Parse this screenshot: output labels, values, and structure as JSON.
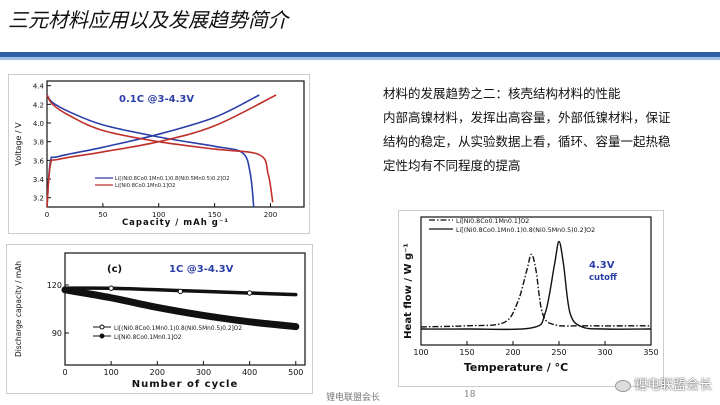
{
  "page": {
    "title": "三元材料应用以及发展趋势简介",
    "description_lines": [
      "材料的发展趋势之二：核壳结构材料的性能",
      "内部高镍材料，发挥出高容量，外部低镍材料，保证",
      "结构的稳定，从实验数据上看，循环、容量一起热稳",
      "定性均有不同程度的提高"
    ],
    "footer_center": "锂电联盟会长",
    "page_number": "18",
    "watermark": "锂电联盟会长"
  },
  "colors": {
    "accent": "#2e5fa8",
    "accent_light": "#9fbde0",
    "blue_curve": "#2c3fa8",
    "red_curve": "#c0302a"
  },
  "chart_data": [
    {
      "type": "line",
      "annotation": "0.1C @3-4.3V",
      "xlabel": "Capacity / mAh g⁻¹",
      "ylabel": "Voltage / V",
      "xlim": [
        0,
        230
      ],
      "ylim": [
        3.1,
        4.45
      ],
      "xticks": [
        0,
        50,
        100,
        150,
        200
      ],
      "yticks": [
        3.2,
        3.4,
        3.6,
        3.8,
        4.0,
        4.2,
        4.4
      ],
      "legend": [
        "Li[(Ni0.8Co0.1Mn0.1)0.8(Ni0.5Mn0.5)0.2]O2",
        "Li[Ni0.8Co0.1Mn0.1]O2"
      ],
      "series": [
        {
          "name": "Li[(Ni0.8Co0.1Mn0.1)0.8(Ni0.5Mn0.5)0.2]O2",
          "color": "#2c3fa8",
          "segments": [
            {
              "x": [
                0,
                3,
                10,
                50,
                100,
                150,
                190
              ],
              "y": [
                3.1,
                3.58,
                3.64,
                3.74,
                3.88,
                4.06,
                4.3
              ]
            },
            {
              "x": [
                0,
                5,
                20,
                50,
                100,
                150,
                175,
                182,
                185
              ],
              "y": [
                4.3,
                4.22,
                4.12,
                3.98,
                3.85,
                3.75,
                3.68,
                3.45,
                3.1
              ]
            }
          ]
        },
        {
          "name": "Li[Ni0.8Co0.1Mn0.1]O2",
          "color": "#c0302a",
          "segments": [
            {
              "x": [
                0,
                3,
                10,
                50,
                100,
                150,
                205
              ],
              "y": [
                3.1,
                3.55,
                3.61,
                3.69,
                3.8,
                3.97,
                4.3
              ]
            },
            {
              "x": [
                0,
                5,
                20,
                50,
                100,
                150,
                190,
                198,
                202
              ],
              "y": [
                4.3,
                4.2,
                4.08,
                3.92,
                3.8,
                3.72,
                3.66,
                3.45,
                3.15
              ]
            }
          ]
        }
      ]
    },
    {
      "type": "line",
      "annotation_label": "(c)",
      "annotation": "1C @3-4.3V",
      "xlabel": "Number of cycle",
      "ylabel": "Discharge capacity / mAh",
      "xlim": [
        0,
        520
      ],
      "ylim": [
        70,
        140
      ],
      "xticks": [
        0,
        100,
        200,
        300,
        400,
        500
      ],
      "yticks": [
        90,
        120
      ],
      "legend": [
        "Li[(Ni0.8Co0.1Mn0.1)0.8(Ni0.5Mn0.5)0.2]O2",
        "Li[Ni0.8Co0.1Mn0.1]O2"
      ],
      "series": [
        {
          "name": "Li[(Ni0.8Co0.1Mn0.1)0.8(Ni0.5Mn0.5)0.2]O2",
          "x": [
            0,
            100,
            200,
            300,
            400,
            500
          ],
          "y": [
            118,
            118,
            117,
            116,
            115,
            114
          ]
        },
        {
          "name": "Li[Ni0.8Co0.1Mn0.1]O2",
          "x": [
            0,
            100,
            200,
            300,
            400,
            500
          ],
          "y": [
            117,
            112,
            106,
            101,
            97,
            94
          ]
        }
      ]
    },
    {
      "type": "line",
      "annotation": "4.3V cutoff",
      "xlabel": "Temperature / °C",
      "ylabel": "Heat flow / W g⁻¹",
      "xlim": [
        100,
        350
      ],
      "xticks": [
        100,
        150,
        200,
        250,
        300,
        350
      ],
      "legend": [
        "Li[Ni0.8Co0.1Mn0.1]O2",
        "Li[(Ni0.8Co0.1Mn0.1)0.8(Ni0.5Mn0.5)0.2]O2"
      ],
      "series": [
        {
          "name": "Li[Ni0.8Co0.1Mn0.1]O2",
          "style": "dash-dot",
          "x": [
            100,
            150,
            190,
            205,
            215,
            220,
            225,
            232,
            245,
            280,
            350
          ],
          "y": [
            0.02,
            0.03,
            0.06,
            0.25,
            0.55,
            0.7,
            0.55,
            0.15,
            0.04,
            0.03,
            0.03
          ]
        },
        {
          "name": "Li[(Ni0.8Co0.1Mn0.1)0.8(Ni0.5Mn0.5)0.2]O2",
          "style": "solid",
          "x": [
            100,
            150,
            220,
            235,
            245,
            250,
            255,
            262,
            275,
            300,
            350
          ],
          "y": [
            0.0,
            0.0,
            0.01,
            0.15,
            0.6,
            0.82,
            0.6,
            0.15,
            0.02,
            0.0,
            0.0
          ]
        }
      ]
    }
  ]
}
